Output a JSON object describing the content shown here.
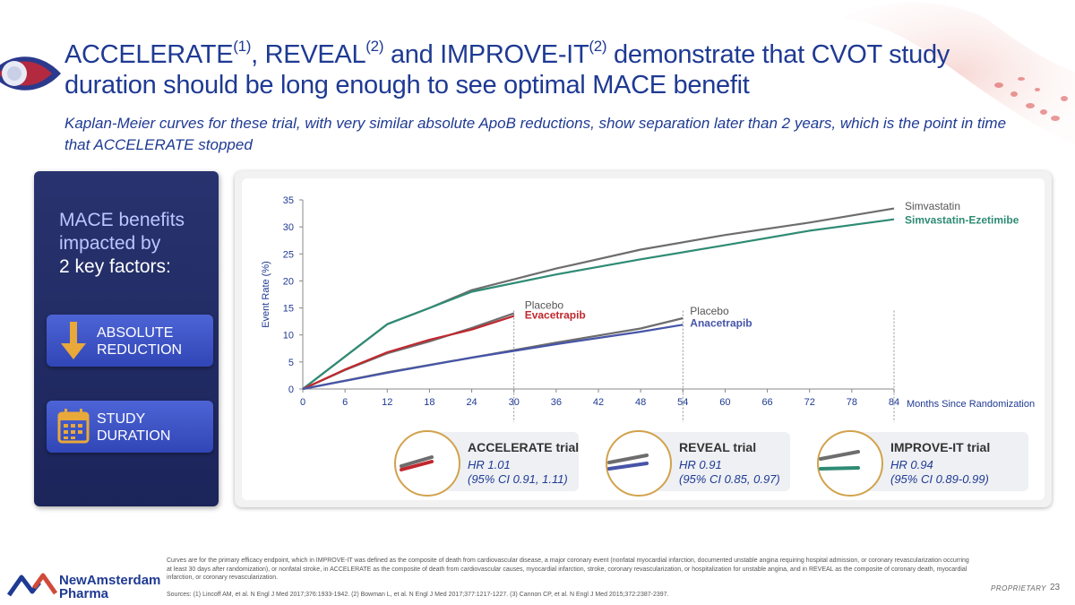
{
  "slide": {
    "title_parts": [
      "ACCELERATE",
      "(1)",
      ", REVEAL",
      "(2)",
      " and IMPROVE-IT",
      "(2)",
      " demonstrate that CVOT study duration should be long enough to see optimal MACE benefit"
    ],
    "subtitle": "Kaplan-Meier curves for these trial, with very similar absolute ApoB reductions, show separation later than 2 years, which is the point in time that ACCELERATE stopped",
    "proprietary": "PROPRIETARY",
    "page_number": "23"
  },
  "panel": {
    "heading_line1": "MACE benefits",
    "heading_line2": "impacted by",
    "heading_line3": "2 key factors:",
    "factor1": {
      "label": "ABSOLUTE REDUCTION",
      "icon": "down-arrow-icon"
    },
    "factor2": {
      "label": "STUDY DURATION",
      "icon": "calendar-icon"
    }
  },
  "chart_data": {
    "type": "line",
    "title": "",
    "xlabel": "Months Since Randomization",
    "ylabel": "Event Rate (%)",
    "xlim": [
      0,
      84
    ],
    "ylim": [
      0,
      35
    ],
    "xticks": [
      0,
      6,
      12,
      18,
      24,
      30,
      36,
      42,
      48,
      54,
      60,
      66,
      72,
      78,
      84
    ],
    "yticks": [
      0,
      5,
      10,
      15,
      20,
      25,
      30,
      35
    ],
    "grid": false,
    "legend": "inline labels",
    "reference_lines_x": [
      30,
      54,
      84
    ],
    "series": [
      {
        "name": "Simvastatin",
        "color": "#6d6d6d",
        "trial": "IMPROVE-IT",
        "points": [
          [
            0,
            0
          ],
          [
            12,
            12
          ],
          [
            18,
            15
          ],
          [
            24,
            18.3
          ],
          [
            36,
            22.3
          ],
          [
            48,
            25.8
          ],
          [
            60,
            28.5
          ],
          [
            72,
            30.8
          ],
          [
            84,
            33.4
          ]
        ]
      },
      {
        "name": "Simvastatin-Ezetimibe",
        "color": "#2e8b74",
        "trial": "IMPROVE-IT",
        "points": [
          [
            0,
            0
          ],
          [
            12,
            12
          ],
          [
            18,
            15
          ],
          [
            24,
            18
          ],
          [
            36,
            21.2
          ],
          [
            48,
            24
          ],
          [
            60,
            26.6
          ],
          [
            72,
            29.3
          ],
          [
            84,
            31.4
          ]
        ]
      },
      {
        "name": "Placebo",
        "color": "#6d6d6d",
        "trial": "ACCELERATE",
        "points": [
          [
            0,
            0
          ],
          [
            6,
            3.5
          ],
          [
            12,
            6.6
          ],
          [
            18,
            8.8
          ],
          [
            24,
            11.3
          ],
          [
            30,
            14
          ]
        ]
      },
      {
        "name": "Evacetrapib",
        "color": "#c0282e",
        "trial": "ACCELERATE",
        "points": [
          [
            0,
            0
          ],
          [
            6,
            3.6
          ],
          [
            12,
            6.8
          ],
          [
            18,
            9.1
          ],
          [
            24,
            11
          ],
          [
            30,
            13.5
          ]
        ]
      },
      {
        "name": "Placebo",
        "color": "#6d6d6d",
        "trial": "REVEAL",
        "points": [
          [
            0,
            0
          ],
          [
            12,
            3.1
          ],
          [
            24,
            5.8
          ],
          [
            36,
            8.6
          ],
          [
            48,
            11.2
          ],
          [
            54,
            13.1
          ]
        ]
      },
      {
        "name": "Anacetrapib",
        "color": "#4655a8",
        "trial": "REVEAL",
        "points": [
          [
            0,
            0
          ],
          [
            12,
            3.0
          ],
          [
            24,
            5.8
          ],
          [
            36,
            8.3
          ],
          [
            48,
            10.6
          ],
          [
            54,
            11.9
          ]
        ]
      }
    ],
    "labels": {
      "simvastatin": "Simvastatin",
      "simvastatin_ezetimibe": "Simvastatin-Ezetimibe",
      "accel_placebo": "Placebo",
      "evacetrapib": "Evacetrapib",
      "reveal_placebo": "Placebo",
      "anacetrapib": "Anacetrapib"
    }
  },
  "trials": [
    {
      "name": "ACCELERATE trial",
      "hr": "HR 1.01",
      "ci": "(95% CI 0.91, 1.11)",
      "line_top": "#6d6d6d",
      "line_bottom": "#c0282e"
    },
    {
      "name": "REVEAL trial",
      "hr": "HR 0.91",
      "ci": "(95% CI 0.85, 0.97)",
      "line_top": "#6d6d6d",
      "line_bottom": "#4655a8"
    },
    {
      "name": "IMPROVE-IT trial",
      "hr": "HR 0.94",
      "ci": "(95% CI 0.89-0.99)",
      "line_top": "#6d6d6d",
      "line_bottom": "#2e8b74"
    }
  ],
  "footnote": "Curves are for the primary efficacy endpoint, which in IMPROVE-IT was defined as the composite of death from cardiovascular disease, a major coronary event (nonfatal myocardial infarction, documented unstable angina requiring hospital admission, or coronary revascularization occurring at least 30 days after randomization), or nonfatal stroke, in ACCELERATE as the composite of death from cardiovascular causes, myocardial infarction, stroke, coronary revascularization, or hospitalization for unstable angina, and in REVEAL as the composite of coronary death, myocardial infarction, or coronary revascularization.",
  "sources": "Sources: (1) Lincoff AM, et al. N Engl J Med 2017;376:1933-1942. (2) Bowman L, et al. N Engl J Med 2017;377:1217-1227. (3) Cannon CP, et al. N Engl J Med 2015;372:2387-2397.",
  "brand": {
    "line1": "NewAmsterdam",
    "line2": "Pharma"
  },
  "colors": {
    "title": "#1f3a93",
    "panel": "#1f2a63",
    "factor": "#3f55c8",
    "accent_gold": "#d2a24c"
  }
}
